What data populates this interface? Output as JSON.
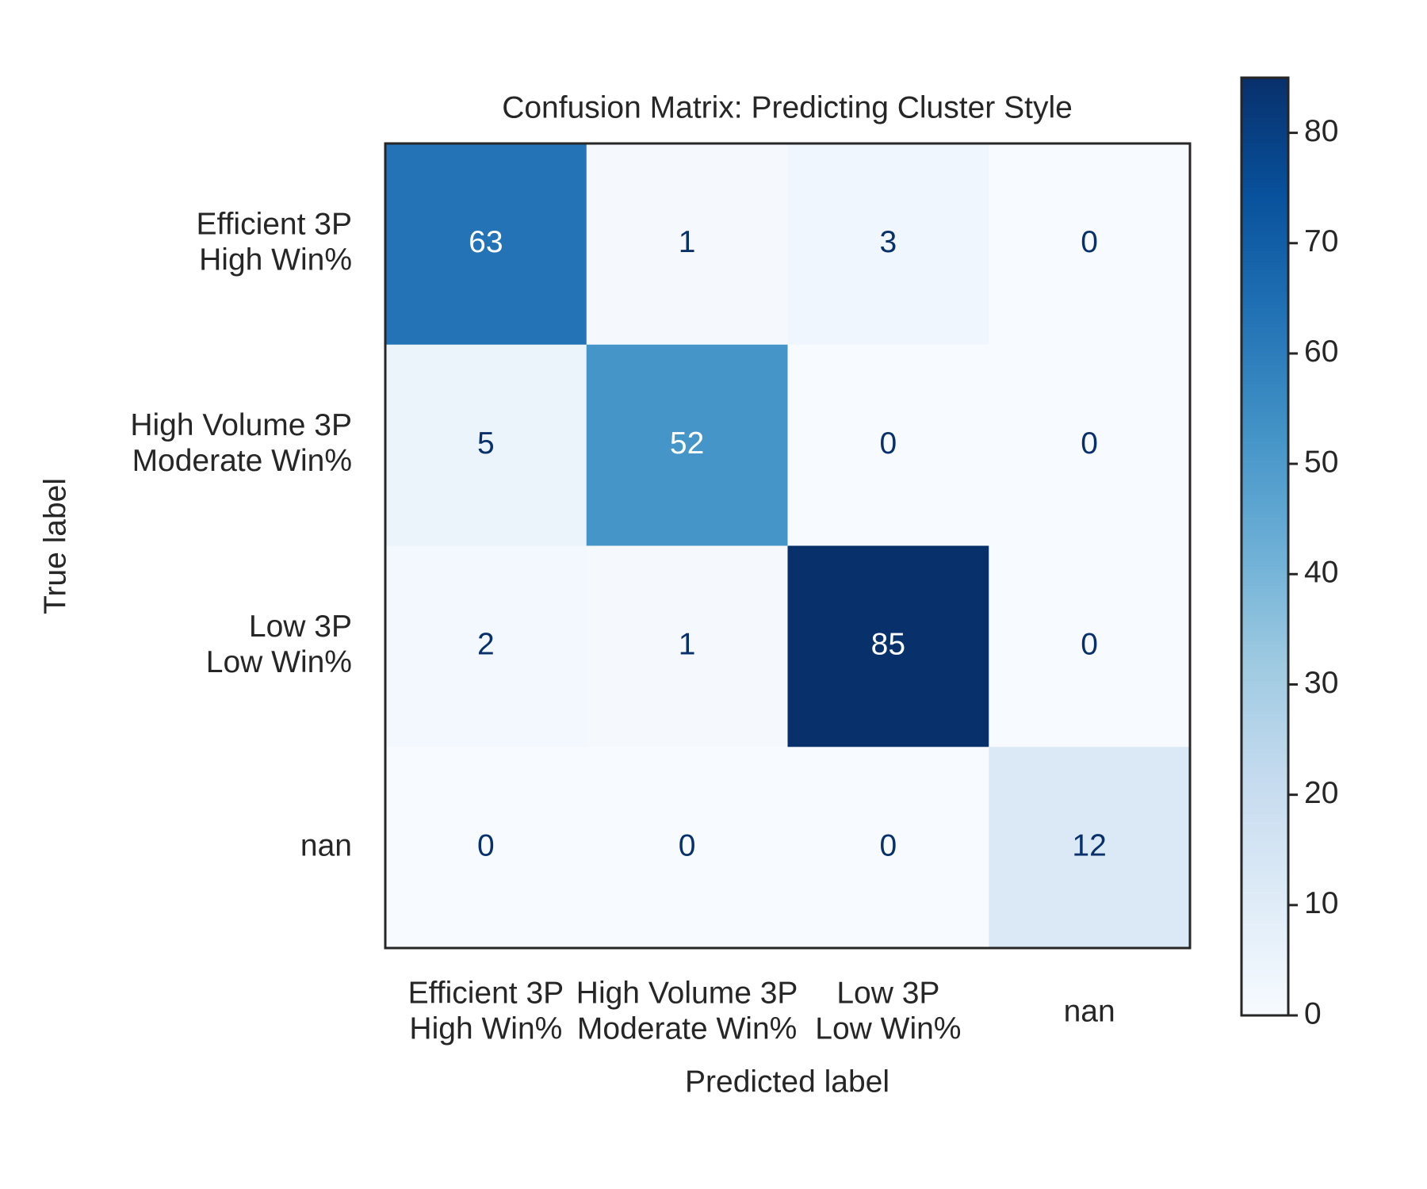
{
  "chart_data": {
    "type": "heatmap",
    "title": "Confusion Matrix: Predicting Cluster Style",
    "xlabel": "Predicted label",
    "ylabel": "True label",
    "x_categories": [
      "Efficient 3P\nHigh Win%",
      "High Volume 3P\nModerate Win%",
      "Low 3P\nLow Win%",
      "nan"
    ],
    "y_categories": [
      "Efficient 3P\nHigh Win%",
      "High Volume 3P\nModerate Win%",
      "Low 3P\nLow Win%",
      "nan"
    ],
    "values": [
      [
        63,
        1,
        3,
        0
      ],
      [
        5,
        52,
        0,
        0
      ],
      [
        2,
        1,
        85,
        0
      ],
      [
        0,
        0,
        0,
        12
      ]
    ],
    "colormap": "Blues",
    "clim": [
      0,
      85
    ],
    "cticks": [
      0,
      10,
      20,
      30,
      40,
      50,
      60,
      70,
      80
    ]
  }
}
